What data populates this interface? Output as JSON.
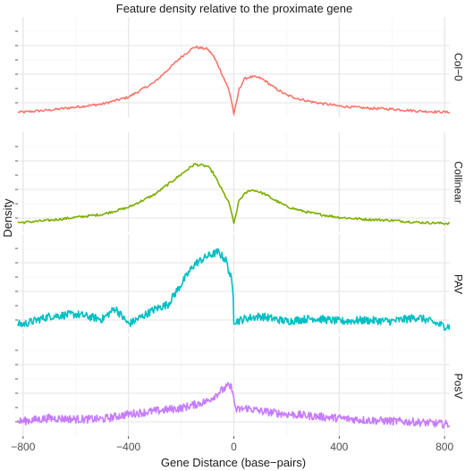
{
  "chart_data": {
    "type": "line",
    "title": "Feature density relative to the proximate gene",
    "xlabel": "Gene Distance (base−pairs)",
    "ylabel": "Density",
    "xlim": [
      -820,
      820
    ],
    "x_ticks": [
      -800,
      -400,
      0,
      400,
      800
    ],
    "x_tick_labels": [
      "−800",
      "−400",
      "0",
      "400",
      "800"
    ],
    "y_axis_labels_shown": false,
    "grid": true,
    "legend": "none",
    "facets": "stacked vertically, strip labels on right",
    "series": [
      {
        "name": "Col−0",
        "color": "#F8766D",
        "noise": 0.012,
        "x": [
          -820,
          -800,
          -700,
          -600,
          -500,
          -400,
          -300,
          -200,
          -150,
          -100,
          -80,
          -60,
          -40,
          -20,
          -10,
          0,
          10,
          20,
          40,
          60,
          80,
          100,
          120,
          150,
          200,
          250,
          300,
          400,
          500,
          600,
          700,
          800,
          820
        ],
        "y": [
          0.05,
          0.05,
          0.07,
          0.1,
          0.13,
          0.2,
          0.35,
          0.6,
          0.7,
          0.68,
          0.62,
          0.52,
          0.4,
          0.28,
          0.18,
          0.03,
          0.14,
          0.28,
          0.38,
          0.4,
          0.4,
          0.39,
          0.36,
          0.3,
          0.22,
          0.18,
          0.15,
          0.11,
          0.09,
          0.08,
          0.06,
          0.05,
          0.05
        ]
      },
      {
        "name": "Collinear",
        "color": "#7CAE00",
        "noise": 0.012,
        "x": [
          -820,
          -800,
          -700,
          -600,
          -500,
          -400,
          -300,
          -200,
          -150,
          -100,
          -80,
          -60,
          -40,
          -20,
          -10,
          0,
          10,
          20,
          40,
          60,
          80,
          100,
          120,
          150,
          200,
          250,
          300,
          400,
          500,
          600,
          700,
          800,
          820
        ],
        "y": [
          0.1,
          0.1,
          0.12,
          0.15,
          0.18,
          0.25,
          0.38,
          0.58,
          0.68,
          0.66,
          0.6,
          0.5,
          0.4,
          0.3,
          0.22,
          0.08,
          0.2,
          0.32,
          0.38,
          0.42,
          0.42,
          0.4,
          0.38,
          0.33,
          0.26,
          0.22,
          0.19,
          0.15,
          0.13,
          0.12,
          0.1,
          0.09,
          0.09
        ]
      },
      {
        "name": "PAV",
        "color": "#00BFC4",
        "noise": 0.04,
        "x": [
          -820,
          -800,
          -700,
          -600,
          -500,
          -450,
          -400,
          -300,
          -250,
          -200,
          -150,
          -100,
          -60,
          -30,
          -10,
          -2,
          0,
          10,
          50,
          100,
          200,
          300,
          400,
          500,
          600,
          700,
          800,
          820
        ],
        "y": [
          0.1,
          0.1,
          0.18,
          0.2,
          0.15,
          0.26,
          0.1,
          0.25,
          0.3,
          0.5,
          0.7,
          0.78,
          0.82,
          0.74,
          0.55,
          0.4,
          0.14,
          0.13,
          0.16,
          0.18,
          0.13,
          0.16,
          0.13,
          0.14,
          0.13,
          0.17,
          0.08,
          0.08
        ]
      },
      {
        "name": "PosV",
        "color": "#C77CFF",
        "noise": 0.04,
        "x": [
          -820,
          -800,
          -700,
          -600,
          -500,
          -400,
          -300,
          -200,
          -100,
          -50,
          -20,
          -5,
          0,
          10,
          50,
          100,
          200,
          300,
          400,
          500,
          600,
          700,
          800,
          820
        ],
        "y": [
          0.15,
          0.15,
          0.18,
          0.17,
          0.17,
          0.22,
          0.25,
          0.28,
          0.35,
          0.45,
          0.5,
          0.48,
          0.35,
          0.26,
          0.28,
          0.25,
          0.22,
          0.2,
          0.18,
          0.16,
          0.15,
          0.14,
          0.12,
          0.12
        ]
      }
    ]
  }
}
